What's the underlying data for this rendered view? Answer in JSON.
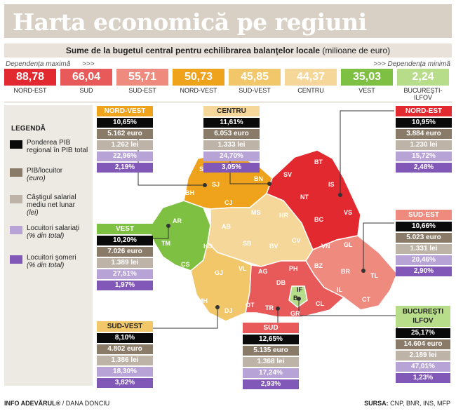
{
  "title": "Harta economică pe regiuni",
  "subtitle_bold": "Sume de la bugetul central pentru echilibrarea balanţelor locale",
  "subtitle_unit": "(milioane de euro)",
  "dep_max": "Dependenţa maximă",
  "dep_arrows_left": ">>>",
  "dep_arrows_right": ">>>",
  "dep_min": "Dependenţa minimă",
  "tiles": [
    {
      "value": "88,78",
      "name": "NORD-EST",
      "color": "#e2292f"
    },
    {
      "value": "66,04",
      "name": "SUD",
      "color": "#e85a5a"
    },
    {
      "value": "55,71",
      "name": "SUD-EST",
      "color": "#ee8a7e"
    },
    {
      "value": "50,73",
      "name": "NORD-VEST",
      "color": "#efa21c"
    },
    {
      "value": "45,85",
      "name": "SUD-VEST",
      "color": "#f2c76a"
    },
    {
      "value": "44,37",
      "name": "CENTRU",
      "color": "#f6d79a"
    },
    {
      "value": "35,03",
      "name": "VEST",
      "color": "#7ec142"
    },
    {
      "value": "2,24",
      "name": "BUCUREŞTI-ILFOV",
      "color": "#b7dc8a"
    }
  ],
  "legend": {
    "title": "LEGENDĂ",
    "items": [
      {
        "text": "Ponderea PIB regional în PIB total",
        "note": "",
        "color": "#0a0a0a"
      },
      {
        "text": "PIB/locuitor",
        "note": "(euro)",
        "color": "#8a7a68"
      },
      {
        "text": "Câştigul salarial mediu net lunar",
        "note": "(lei)",
        "color": "#bdb3a7"
      },
      {
        "text": "Locuitori salariaţi",
        "note": "(% din total)",
        "color": "#b7a3d6"
      },
      {
        "text": "Locuitori şomeri",
        "note": "(% din total)",
        "color": "#8157b8"
      }
    ]
  },
  "regions": {
    "nord_vest": {
      "name": "NORD-VEST",
      "color": "#efa21c",
      "pib": "10,65%",
      "pibloc": "5.162 euro",
      "salariu": "1.262 lei",
      "salariati": "22,96%",
      "someri": "2,19%"
    },
    "centru": {
      "name": "CENTRU",
      "color": "#f6d79a",
      "pib": "11,61%",
      "pibloc": "6.053 euro",
      "salariu": "1.333 lei",
      "salariati": "24,70%",
      "someri": "3,05%"
    },
    "nord_est": {
      "name": "NORD-EST",
      "color": "#e2292f",
      "pib": "10,95%",
      "pibloc": "3.884 euro",
      "salariu": "1.230 lei",
      "salariati": "15,72%",
      "someri": "2,48%"
    },
    "vest": {
      "name": "VEST",
      "color": "#7ec142",
      "pib": "10,20%",
      "pibloc": "7.026 euro",
      "salariu": "1.389 lei",
      "salariati": "27,51%",
      "someri": "1,97%"
    },
    "sud_est": {
      "name": "SUD-EST",
      "color": "#ee8a7e",
      "pib": "10,66%",
      "pibloc": "5.023 euro",
      "salariu": "1.331 lei",
      "salariati": "20,46%",
      "someri": "2,90%"
    },
    "sud_vest": {
      "name": "SUD-VEST",
      "color": "#f2c76a",
      "pib": "8,10%",
      "pibloc": "4.802 euro",
      "salariu": "1.386 lei",
      "salariati": "18,30%",
      "someri": "3,82%"
    },
    "sud": {
      "name": "SUD",
      "color": "#e85a5a",
      "pib": "12,65%",
      "pibloc": "5.135 euro",
      "salariu": "1.368 lei",
      "salariati": "17,24%",
      "someri": "2,93%"
    },
    "bucuresti": {
      "name": "BUCUREŞTI ILFOV",
      "color": "#b7dc8a",
      "pib": "25,17%",
      "pibloc": "14.604 euro",
      "salariu": "2.189 lei",
      "salariati": "47,01%",
      "someri": "1,23%"
    }
  },
  "counties": [
    "SM",
    "MM",
    "BH",
    "SJ",
    "BN",
    "CJ",
    "SV",
    "BT",
    "IS",
    "NT",
    "VS",
    "BC",
    "AR",
    "TM",
    "HD",
    "CS",
    "AB",
    "MS",
    "HR",
    "SB",
    "BV",
    "CV",
    "VN",
    "GL",
    "BZ",
    "BR",
    "TL",
    "CT",
    "GJ",
    "VL",
    "MH",
    "DJ",
    "OT",
    "AG",
    "DB",
    "PH",
    "TR",
    "GR",
    "IL",
    "CL",
    "IF",
    "B"
  ],
  "footer": {
    "left_bold": "INFO ADEVĂRUL®",
    "left_rest": " / DANA DONCIU",
    "right_bold": "SURSA:",
    "right_rest": " CNP, BNR, INS, MFP"
  }
}
